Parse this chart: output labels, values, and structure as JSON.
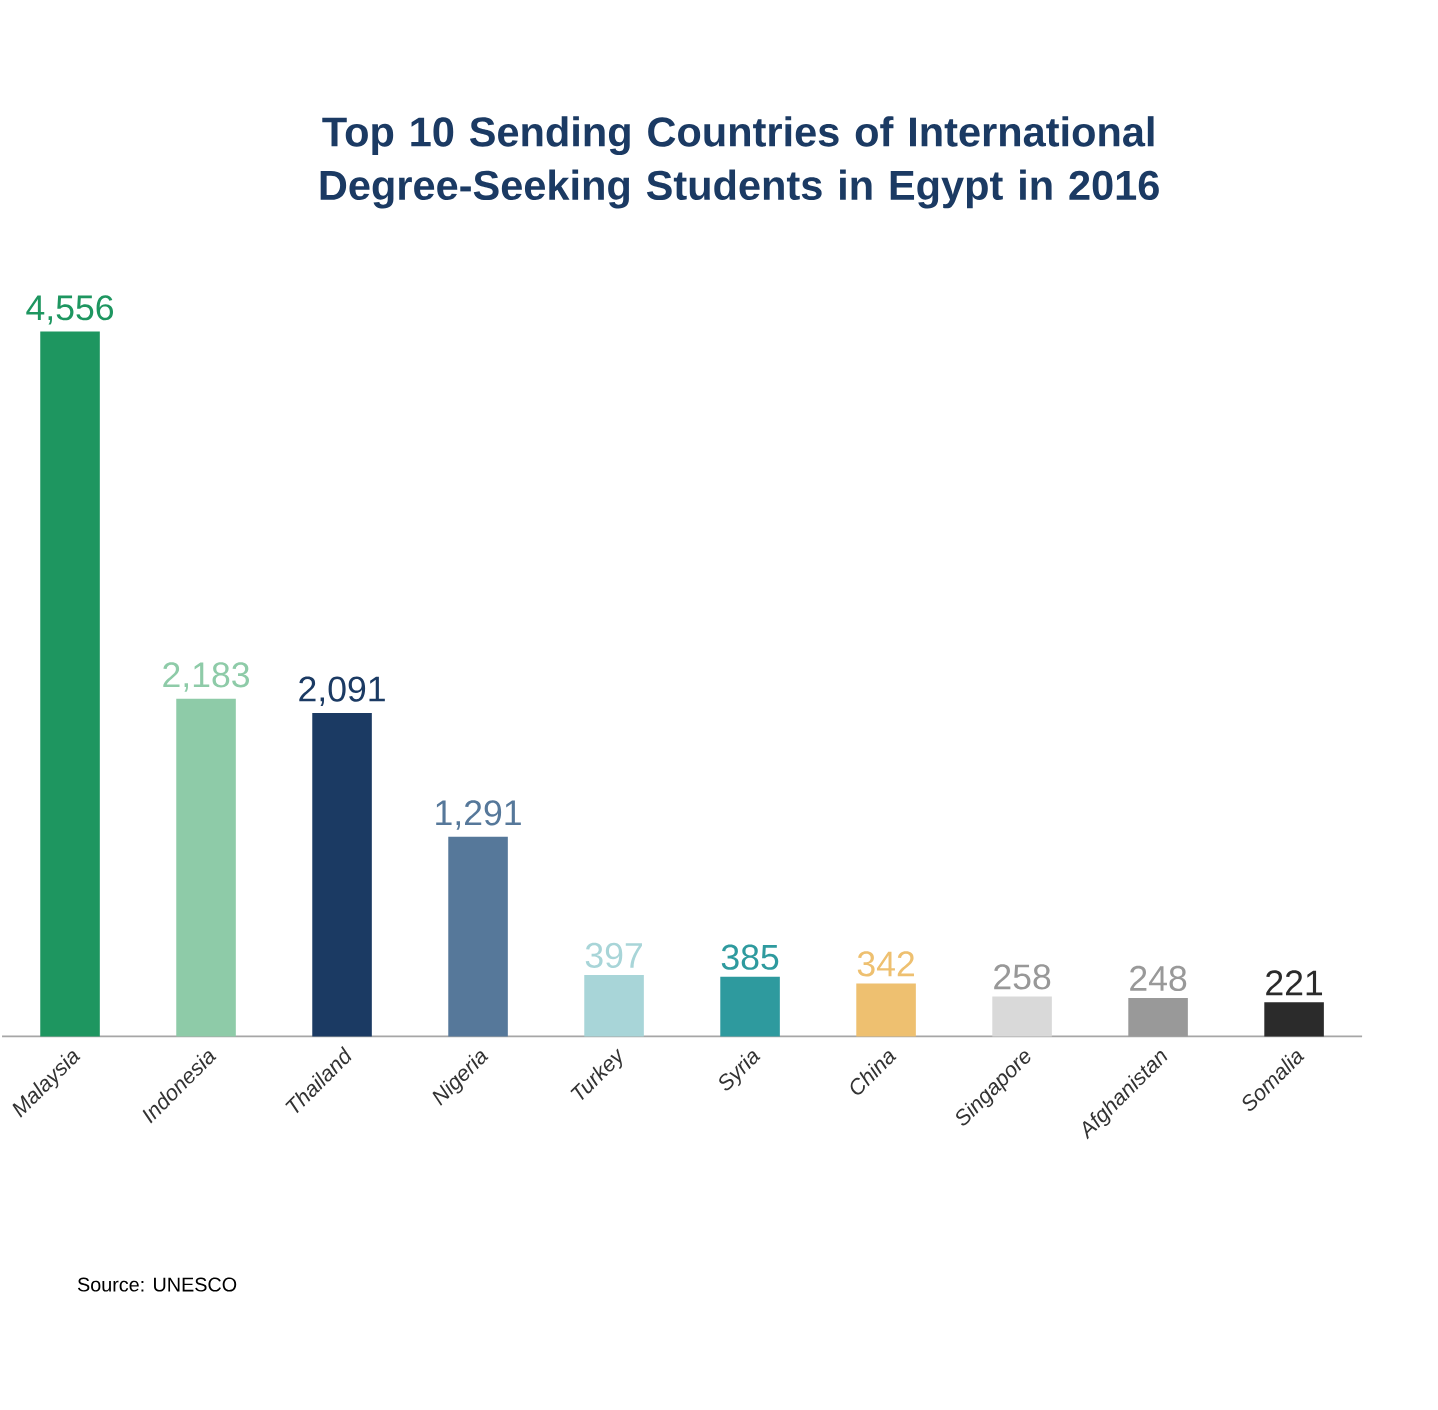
{
  "chart_data": {
    "type": "bar",
    "title": "Top 10 Sending Countries of International Degree-Seeking Students in Egypt in 2016",
    "categories": [
      "Malaysia",
      "Indonesia",
      "Thailand",
      "Nigeria",
      "Turkey",
      "Syria",
      "China",
      "Singapore",
      "Afghanistan",
      "Somalia"
    ],
    "values": [
      4556,
      2183,
      2091,
      1291,
      397,
      385,
      342,
      258,
      248,
      221
    ],
    "value_labels": [
      "4,556",
      "2,183",
      "2,091",
      "1,291",
      "397",
      "385",
      "342",
      "258",
      "248",
      "221"
    ],
    "colors": [
      "#1e9660",
      "#8ecba8",
      "#1b3a63",
      "#56789a",
      "#a8d5d8",
      "#2e9a9e",
      "#eec070",
      "#d9d9d9",
      "#999999",
      "#2b2b2b"
    ],
    "annotations": [
      "Source: UNESCO"
    ]
  }
}
